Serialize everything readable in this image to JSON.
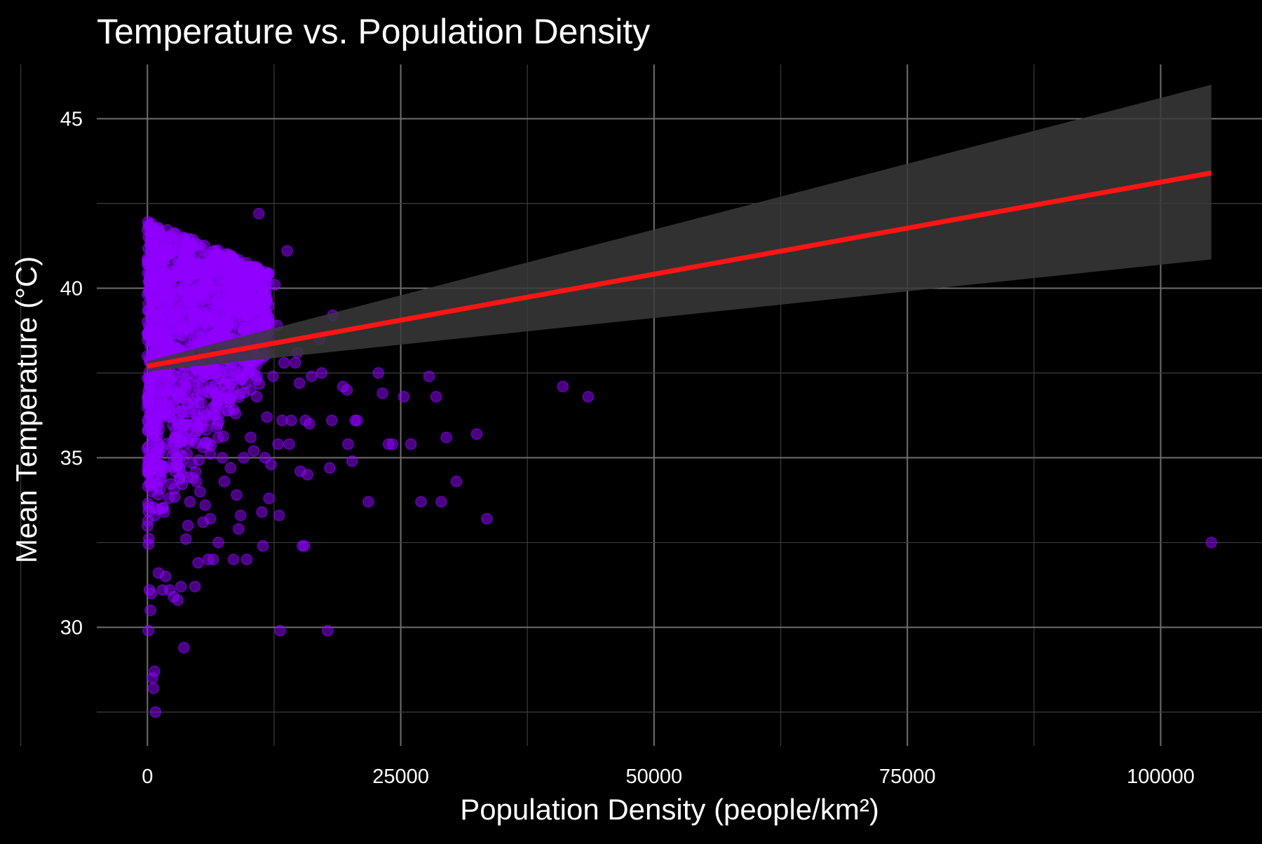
{
  "chart_data": {
    "type": "scatter",
    "title": "Temperature vs. Population Density",
    "xlabel": "Population Density (people/km²)",
    "ylabel": "Mean Temperature (°C)",
    "xlim": [
      -5000,
      110000
    ],
    "ylim": [
      26.5,
      46.6
    ],
    "x_ticks": [
      0,
      25000,
      50000,
      75000,
      100000
    ],
    "x_tick_labels": [
      "0",
      "25000",
      "50000",
      "75000",
      "100000"
    ],
    "y_ticks": [
      30,
      35,
      40,
      45
    ],
    "y_tick_labels": [
      "30",
      "35",
      "40",
      "45"
    ],
    "grid": true,
    "legend": "none",
    "colors": {
      "background": "#000000",
      "points": "#8f00ff",
      "trend_line": "#ff1414",
      "confidence_band": "#3a3a3a",
      "grid_major": "#6e6e6e",
      "grid_minor": "#3c3c3c",
      "text": "#ffffff"
    },
    "trend": {
      "method": "linear",
      "x": [
        0,
        105000
      ],
      "y": [
        37.7,
        43.4
      ],
      "ci_lower": [
        37.55,
        40.85
      ],
      "ci_upper": [
        37.85,
        46.0
      ]
    },
    "dense_cluster": {
      "x_range": [
        0,
        12000
      ],
      "y_range": [
        30.8,
        42.6
      ],
      "approx_count": 1400
    },
    "points": [
      [
        41000,
        37.1
      ],
      [
        43500,
        36.8
      ],
      [
        105000,
        32.5
      ],
      [
        33500,
        33.2
      ],
      [
        32500,
        35.7
      ],
      [
        30500,
        34.3
      ],
      [
        29500,
        35.6
      ],
      [
        29000,
        33.7
      ],
      [
        28500,
        36.8
      ],
      [
        27800,
        37.4
      ],
      [
        27000,
        33.7
      ],
      [
        26000,
        35.4
      ],
      [
        25300,
        36.8
      ],
      [
        24200,
        35.4
      ],
      [
        23800,
        35.4
      ],
      [
        23200,
        36.9
      ],
      [
        22800,
        37.5
      ],
      [
        21800,
        33.7
      ],
      [
        20700,
        36.1
      ],
      [
        20500,
        36.1
      ],
      [
        20200,
        34.9
      ],
      [
        19800,
        35.4
      ],
      [
        19700,
        37.0
      ],
      [
        19300,
        37.1
      ],
      [
        18300,
        39.2
      ],
      [
        18200,
        36.1
      ],
      [
        18000,
        34.7
      ],
      [
        17800,
        29.9
      ],
      [
        17200,
        37.5
      ],
      [
        17000,
        38.5
      ],
      [
        16200,
        37.4
      ],
      [
        16000,
        36.0
      ],
      [
        15800,
        34.5
      ],
      [
        15600,
        36.1
      ],
      [
        15500,
        32.4
      ],
      [
        15300,
        32.4
      ],
      [
        15100,
        34.6
      ],
      [
        15000,
        37.2
      ],
      [
        14800,
        38.1
      ],
      [
        14600,
        37.8
      ],
      [
        14200,
        36.1
      ],
      [
        14000,
        35.4
      ],
      [
        13800,
        41.1
      ],
      [
        13500,
        37.8
      ],
      [
        13300,
        36.1
      ],
      [
        13100,
        29.9
      ],
      [
        13000,
        33.3
      ],
      [
        12900,
        35.4
      ],
      [
        12800,
        38.9
      ],
      [
        12600,
        40.1
      ],
      [
        12400,
        37.4
      ],
      [
        12200,
        34.8
      ],
      [
        12000,
        33.8
      ],
      [
        11800,
        36.2
      ],
      [
        11600,
        35.0
      ],
      [
        11400,
        32.4
      ],
      [
        11300,
        33.4
      ],
      [
        11200,
        39.6
      ],
      [
        11000,
        42.2
      ],
      [
        10800,
        36.8
      ],
      [
        10500,
        35.2
      ],
      [
        10200,
        35.6
      ],
      [
        9800,
        32.0
      ],
      [
        9500,
        35.0
      ],
      [
        9200,
        33.3
      ],
      [
        9000,
        32.9
      ],
      [
        8800,
        33.9
      ],
      [
        8500,
        32.0
      ],
      [
        8200,
        34.7
      ],
      [
        8000,
        36.4
      ],
      [
        7600,
        34.3
      ],
      [
        7400,
        35.0
      ],
      [
        7000,
        32.5
      ],
      [
        6500,
        32.0
      ],
      [
        6200,
        33.2
      ],
      [
        6000,
        32.0
      ],
      [
        5700,
        33.6
      ],
      [
        5500,
        33.1
      ],
      [
        5200,
        34.0
      ],
      [
        5000,
        31.9
      ],
      [
        4700,
        31.2
      ],
      [
        4500,
        34.4
      ],
      [
        4200,
        33.7
      ],
      [
        4000,
        33.0
      ],
      [
        3800,
        32.6
      ],
      [
        3600,
        29.4
      ],
      [
        3300,
        31.2
      ],
      [
        3000,
        30.8
      ],
      [
        2600,
        30.9
      ],
      [
        2200,
        31.1
      ],
      [
        1800,
        31.5
      ],
      [
        1500,
        31.1
      ],
      [
        1100,
        31.6
      ],
      [
        800,
        27.5
      ],
      [
        700,
        28.7
      ],
      [
        600,
        28.2
      ],
      [
        500,
        28.5
      ],
      [
        300,
        30.5
      ],
      [
        200,
        31.1
      ],
      [
        100,
        29.9
      ],
      [
        400,
        31.0
      ]
    ]
  }
}
